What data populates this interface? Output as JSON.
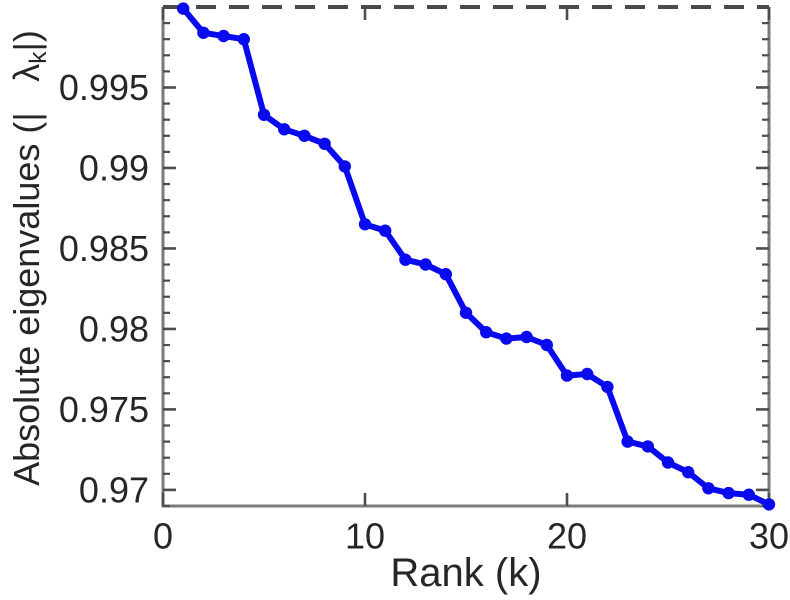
{
  "figure": {
    "background": "#ffffff"
  },
  "chart_data": {
    "type": "line",
    "title": "",
    "xlabel": "Rank (k)",
    "ylabel": "Absolute eigenvalues (|λk|)",
    "ylabel_parts": {
      "prefix": "Absolute eigenvalues (|",
      "symbol": "λ",
      "subscript": "k",
      "suffix": "|)"
    },
    "x": [
      1,
      2,
      3,
      4,
      5,
      6,
      7,
      8,
      9,
      10,
      11,
      12,
      13,
      14,
      15,
      16,
      17,
      18,
      19,
      20,
      21,
      22,
      23,
      24,
      25,
      26,
      27,
      28,
      29,
      30
    ],
    "y": [
      0.9999,
      0.9984,
      0.9982,
      0.998,
      0.9933,
      0.9924,
      0.992,
      0.9915,
      0.9901,
      0.9865,
      0.9861,
      0.9843,
      0.984,
      0.9834,
      0.981,
      0.9798,
      0.9794,
      0.9795,
      0.979,
      0.9771,
      0.9772,
      0.9764,
      0.973,
      0.9727,
      0.9717,
      0.9711,
      0.9701,
      0.9698,
      0.9697,
      0.9691
    ],
    "xlim": [
      0,
      30
    ],
    "ylim": [
      0.969,
      1.0
    ],
    "xticks": [
      0,
      10,
      20,
      30
    ],
    "xtick_labels": [
      "0",
      "10",
      "20",
      "30"
    ],
    "yticks": [
      0.97,
      0.975,
      0.98,
      0.985,
      0.99,
      0.995
    ],
    "ytick_labels": [
      "0.97",
      "0.975",
      "0.98",
      "0.985",
      "0.99",
      "0.995"
    ],
    "y_minor_tick_step": 0.001,
    "reference_line": {
      "value": 1.0,
      "style": "dashed"
    },
    "grid": false,
    "legend": null,
    "marker": "filled-circle",
    "colors": {
      "series": "#0a0aee",
      "reference": "#4a4a4a",
      "axis": "#7a7a7a",
      "tick": "#4d4d4d",
      "text": "#262626"
    }
  }
}
